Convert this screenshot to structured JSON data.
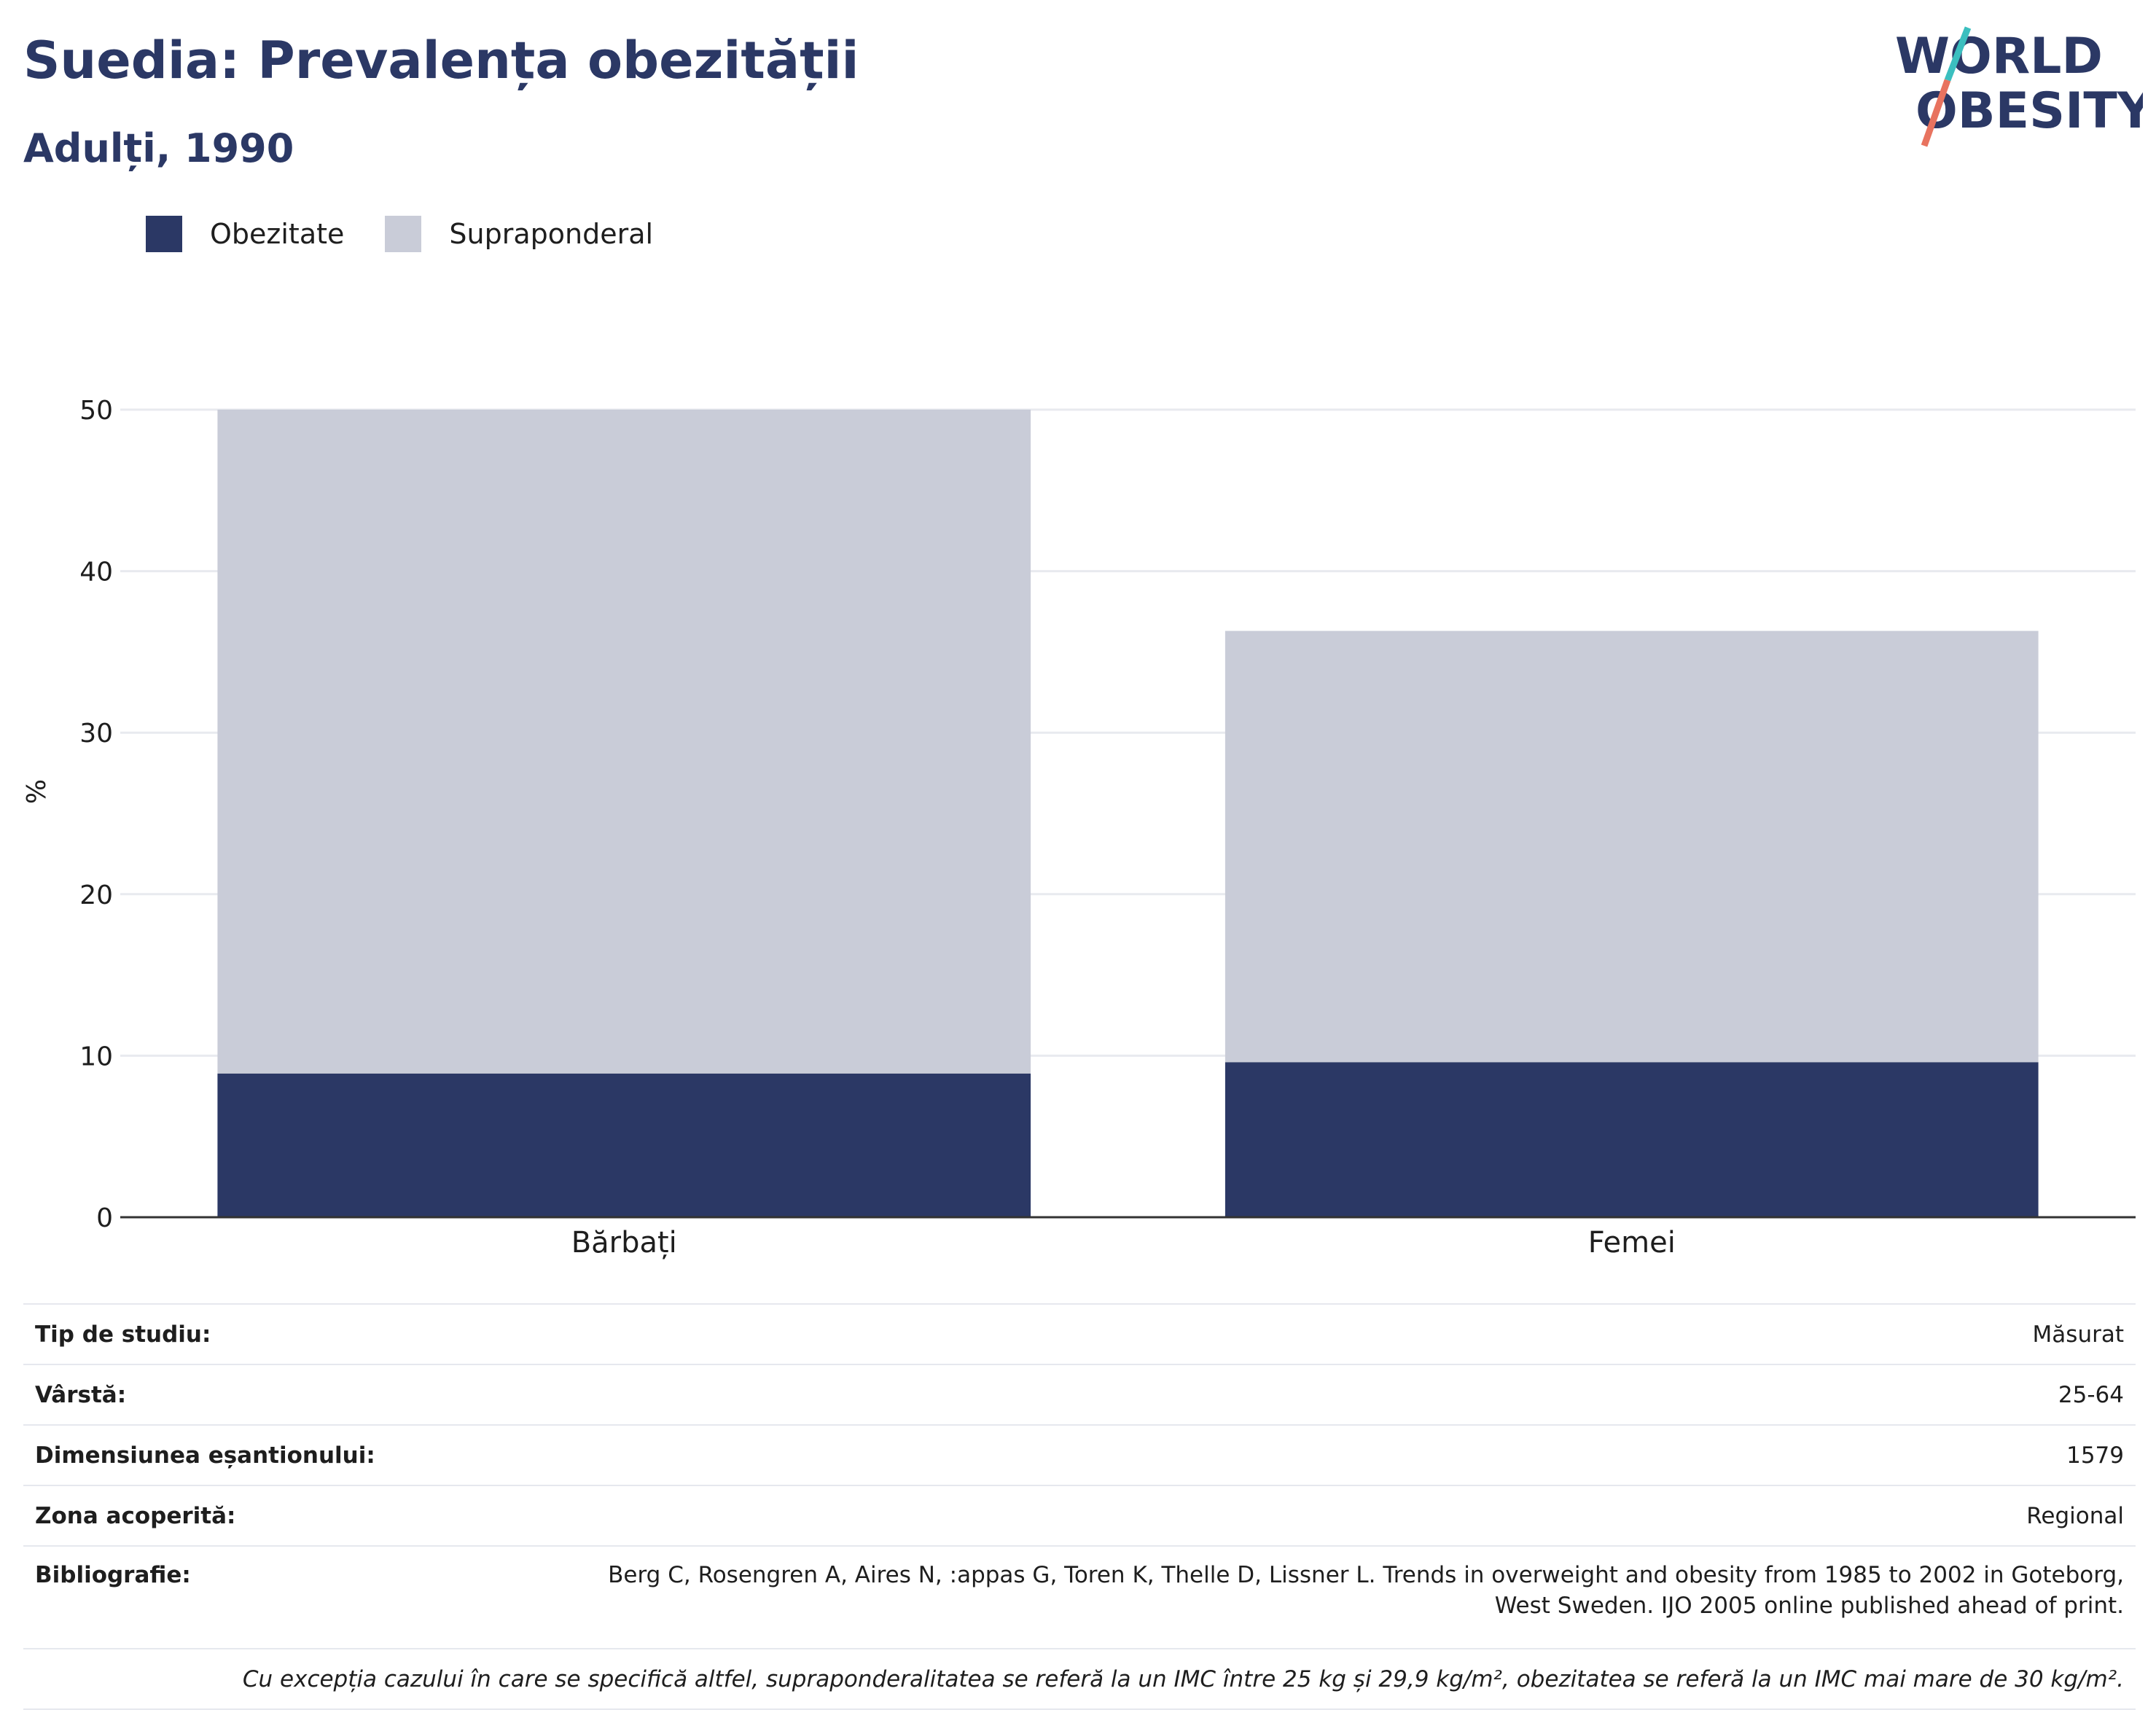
{
  "header": {
    "title": "Suedia: Prevalența obezității",
    "subtitle": "Adulți, 1990"
  },
  "logo": {
    "line1": "WORLD",
    "line2": "OBESITY",
    "icon": "world-obesity-logo"
  },
  "colors": {
    "obezitate": "#2b3865",
    "supraponderal": "#c9ccd8",
    "text": "#1e1e1e",
    "grid": "#e8eaef"
  },
  "chart_data": {
    "type": "bar",
    "stacked": true,
    "categories": [
      "Bărbați",
      "Femei"
    ],
    "series": [
      {
        "name": "Obezitate",
        "values": [
          8.9,
          9.6
        ]
      },
      {
        "name": "Supraponderal",
        "values": [
          41.1,
          26.7
        ]
      }
    ],
    "ylabel": "%",
    "ylim": [
      0,
      50
    ],
    "yticks": [
      0,
      10,
      20,
      30,
      40,
      50
    ],
    "grid": true,
    "legend_position": "top-left"
  },
  "info": {
    "rows": [
      {
        "key": "Tip de studiu:",
        "value": "Măsurat"
      },
      {
        "key": "Vârstă:",
        "value": "25-64"
      },
      {
        "key": "Dimensiunea eșantionului:",
        "value": "1579"
      },
      {
        "key": "Zona acoperită:",
        "value": "Regional"
      }
    ],
    "bibliography": {
      "key": "Bibliografie:",
      "line1": "Berg C, Rosengren A, Aires N, :appas G, Toren K, Thelle D, Lissner L. Trends in overweight and obesity from 1985 to 2002 in Goteborg,",
      "line2": "West Sweden. IJO 2005 online published ahead of print."
    },
    "note": "Cu excepția cazului în care se specifică altfel, supraponderalitatea se referă la un IMC între 25 kg și 29,9 kg/m², obezitatea se referă la un IMC mai mare de 30 kg/m²."
  }
}
